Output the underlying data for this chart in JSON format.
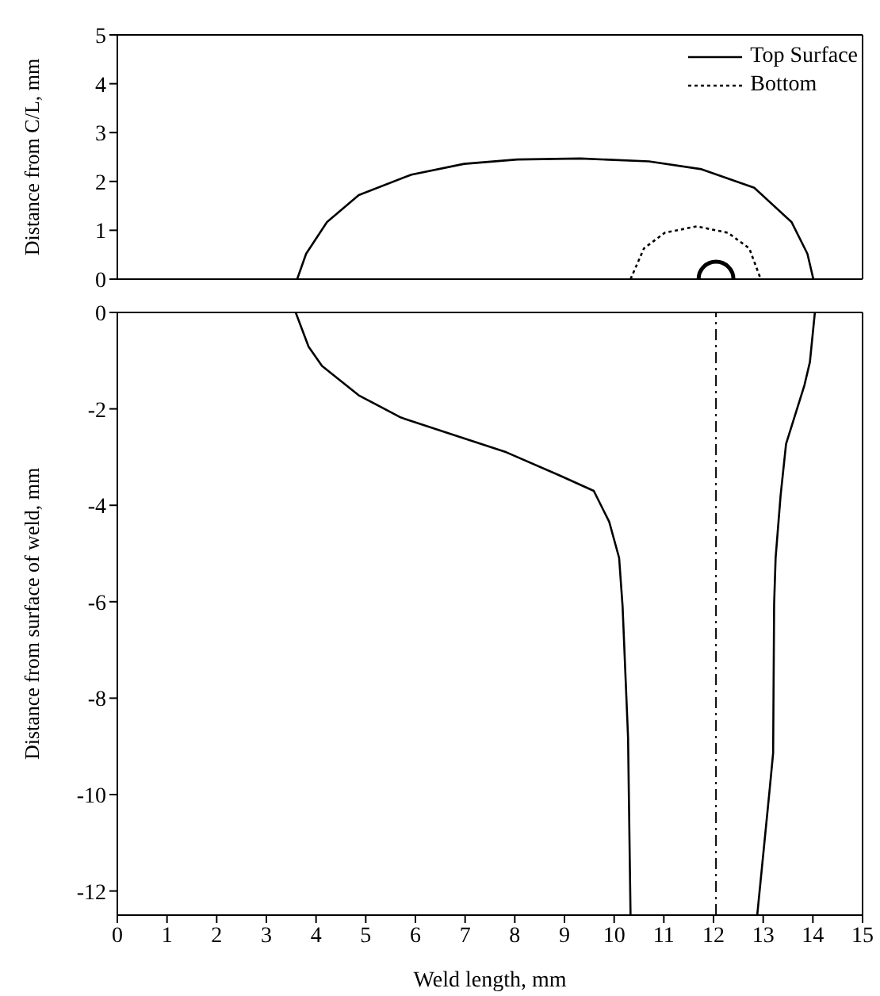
{
  "chart_data": [
    {
      "type": "line",
      "ylabel": "Distance from C/L, mm",
      "xlim": [
        0,
        15
      ],
      "xticks": [
        0,
        1,
        2,
        3,
        4,
        5,
        6,
        7,
        8,
        9,
        10,
        11,
        12,
        13,
        14,
        15
      ],
      "ylim": [
        0,
        5
      ],
      "yticks": [
        0,
        1,
        2,
        3,
        4,
        5
      ],
      "tick_labels": "y",
      "legend": "top right",
      "grid": false,
      "marker": "none",
      "series": [
        {
          "name": "Top Surface",
          "color": "#000000",
          "line_style": "solid",
          "x": [
            3.62,
            3.8,
            4.22,
            4.86,
            5.92,
            6.98,
            8.05,
            9.32,
            10.7,
            11.76,
            12.82,
            13.57,
            13.89,
            14.01
          ],
          "values": [
            0,
            0.52,
            1.17,
            1.72,
            2.14,
            2.36,
            2.45,
            2.47,
            2.41,
            2.25,
            1.87,
            1.17,
            0.52,
            0
          ]
        },
        {
          "name": "Bottom",
          "color": "#000000",
          "line_style": "dotted",
          "x": [
            10.33,
            10.6,
            11.02,
            11.66,
            12.29,
            12.72,
            12.95
          ],
          "values": [
            0,
            0.63,
            0.95,
            1.08,
            0.95,
            0.63,
            0
          ]
        },
        {
          "type": "scatter",
          "color": "#000000",
          "marker": "circle",
          "x": [
            12.05
          ],
          "values": [
            0
          ]
        }
      ]
    },
    {
      "type": "line",
      "xlabel": "Weld length, mm",
      "ylabel": "Distance from surface of weld, mm",
      "xlim": [
        0,
        15
      ],
      "xticks": [
        0,
        1,
        2,
        3,
        4,
        5,
        6,
        7,
        8,
        9,
        10,
        11,
        12,
        13,
        14,
        15
      ],
      "ylim": [
        -12.5,
        0
      ],
      "yticks": [
        0,
        -2,
        -4,
        -6,
        -8,
        -10,
        -12
      ],
      "grid": false,
      "marker": "none",
      "ref_lines": [
        {
          "axis": "x",
          "value": 12.05,
          "color": "#000000",
          "line_style": "dashed"
        }
      ],
      "series": [
        {
          "color": "#000000",
          "line_style": "solid",
          "x": [
            3.59,
            3.85,
            4.12,
            4.86,
            5.71,
            6.77,
            7.83,
            8.9,
            9.59,
            9.9,
            10.1,
            10.17,
            10.28,
            10.33
          ],
          "values": [
            0,
            -0.71,
            -1.11,
            -1.72,
            -2.18,
            -2.54,
            -2.9,
            -3.38,
            -3.7,
            -4.34,
            -5.09,
            -6.1,
            -8.82,
            -12.5
          ]
        },
        {
          "color": "#000000",
          "line_style": "solid",
          "x": [
            14.04,
            13.94,
            13.83,
            13.46,
            13.35,
            13.25,
            13.22,
            13.2,
            13.14,
            12.88
          ],
          "values": [
            0,
            -1.03,
            -1.51,
            -2.73,
            -3.8,
            -5.09,
            -6.05,
            -9.14,
            -9.79,
            -12.5
          ]
        }
      ]
    }
  ]
}
